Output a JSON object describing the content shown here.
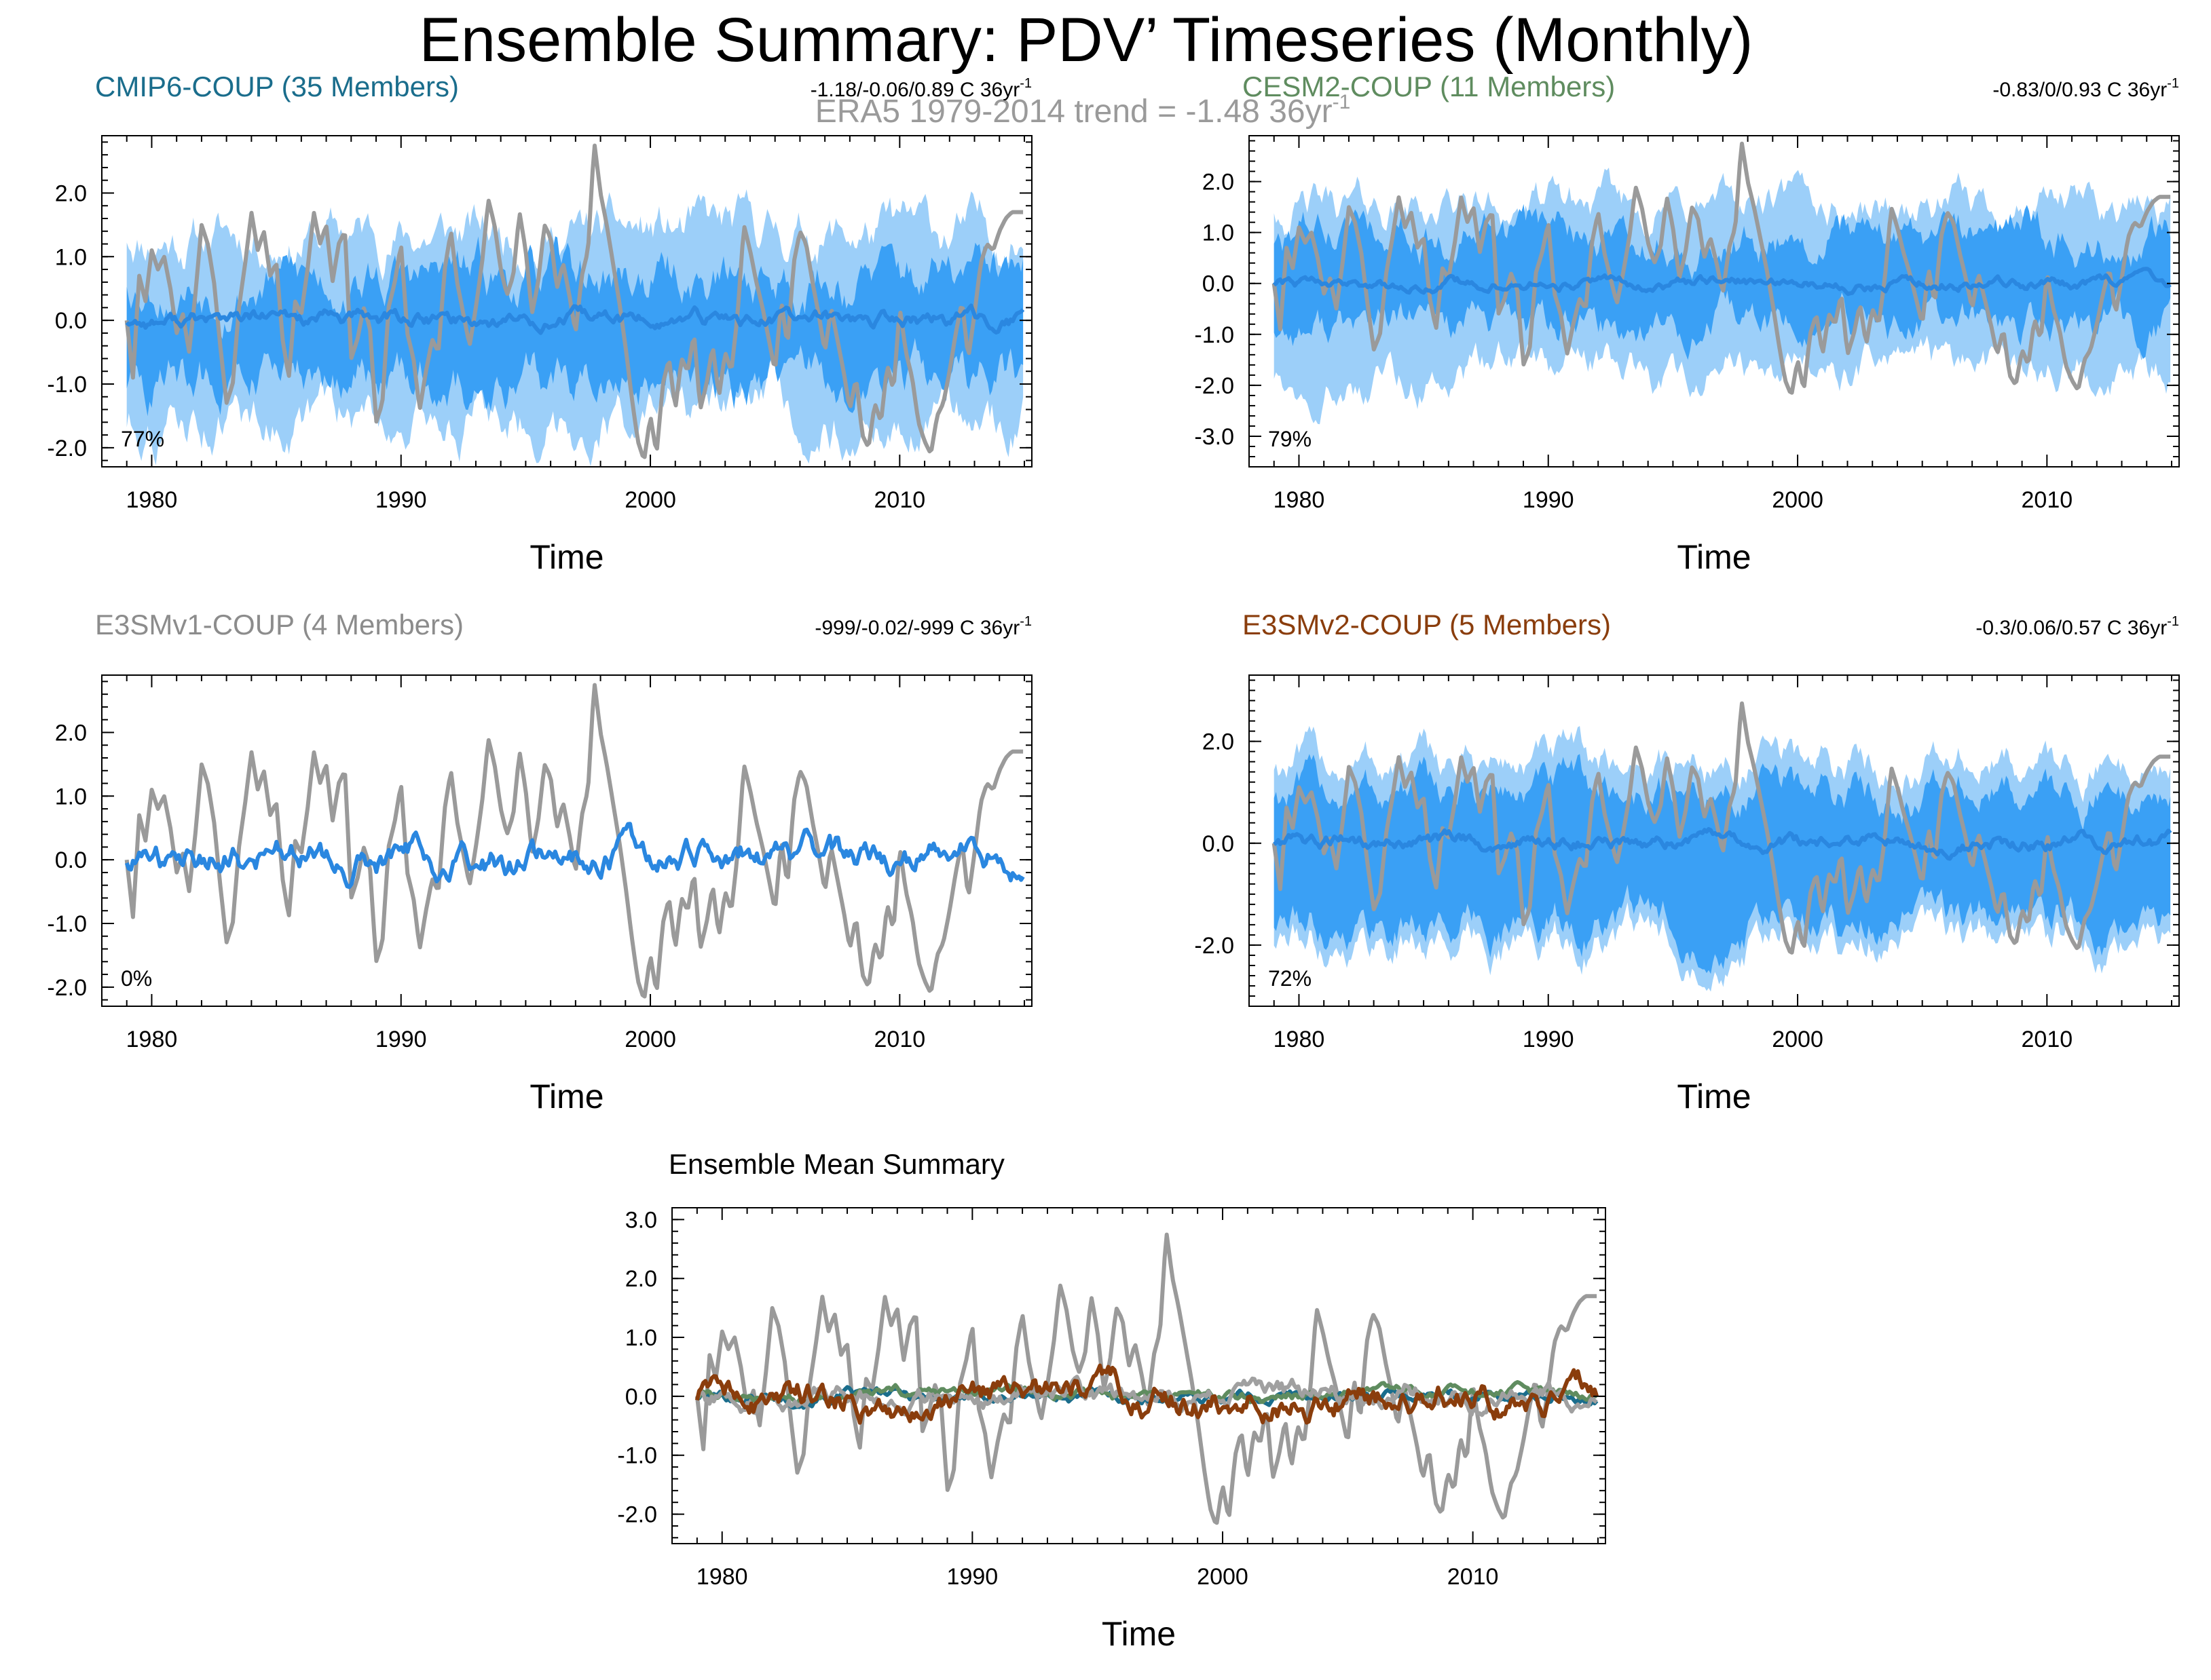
{
  "figure": {
    "title": "Ensemble Summary: PDV’ Timeseries (Monthly)",
    "subtitle": "ERA5 1979-2014 trend = -1.48 36yr",
    "subtitle_exp": "-1"
  },
  "colors": {
    "obs": "#9a9a9a",
    "band_outer": "#9ccff9",
    "band_inner": "#3aa0f5",
    "ens_mean": "#2a87e0",
    "cmip6_title": "#1a6d8c",
    "cesm2_title": "#5f8c5f",
    "e3smv1_title": "#8c8c8c",
    "e3smv2_title": "#8a3d0c",
    "summary_cmip6": "#1a6d8c",
    "summary_cesm2": "#5f8c5f",
    "summary_e3smv1": "#a0a0a0",
    "summary_e3smv2": "#8a3d0c"
  },
  "chart_data": [
    {
      "id": "cmip6",
      "type": "area",
      "title": "CMIP6-COUP (35 Members)",
      "trend_label": "-1.18/-0.06/0.89 C 36yr",
      "trend_exp": "-1",
      "pct_label": "77%",
      "xlabel": "Time",
      "ylabel": "",
      "xlim": [
        1978.0,
        2015.3
      ],
      "ylim": [
        -2.3,
        2.9
      ],
      "yticks": [
        -2.0,
        -1.0,
        0.0,
        1.0,
        2.0
      ],
      "ytick_labels": [
        "-2.0",
        "-1.0",
        "0.0",
        "1.0",
        "2.0"
      ],
      "xticks": [
        1980,
        1990,
        2000,
        2010
      ],
      "xtick_labels": [
        "1980",
        "1990",
        "2000",
        "2010"
      ],
      "band_outer": {
        "lower": -1.55,
        "upper": 1.35
      },
      "band_inner": {
        "lower": -0.95,
        "upper": 0.65
      },
      "ens_mean": {
        "value": 0.0,
        "noise": 0.06
      },
      "shows_obs": true
    },
    {
      "id": "cesm2",
      "type": "area",
      "title": "CESM2-COUP (11 Members)",
      "trend_label": "-0.83/0/0.93 C 36yr",
      "trend_exp": "-1",
      "pct_label": "79%",
      "xlabel": "Time",
      "ylabel": "",
      "xlim": [
        1978.0,
        2015.3
      ],
      "ylim": [
        -3.6,
        2.9
      ],
      "yticks": [
        -3.0,
        -2.0,
        -1.0,
        0.0,
        1.0,
        2.0
      ],
      "ytick_labels": [
        "-3.0",
        "-2.0",
        "-1.0",
        "0.0",
        "1.0",
        "2.0"
      ],
      "xticks": [
        1980,
        1990,
        2000,
        2010
      ],
      "xtick_labels": [
        "1980",
        "1990",
        "2000",
        "2010"
      ],
      "band_outer": {
        "lower": -1.75,
        "upper": 1.5
      },
      "band_inner": {
        "lower": -0.85,
        "upper": 0.9
      },
      "ens_mean": {
        "value": 0.0,
        "noise": 0.05
      },
      "shows_obs": true
    },
    {
      "id": "e3smv1",
      "type": "line",
      "title": "E3SMv1-COUP (4 Members)",
      "trend_label": "-999/-0.02/-999 C 36yr",
      "trend_exp": "-1",
      "pct_label": "0%",
      "xlabel": "Time",
      "ylabel": "",
      "xlim": [
        1978.0,
        2015.3
      ],
      "ylim": [
        -2.3,
        2.9
      ],
      "yticks": [
        -2.0,
        -1.0,
        0.0,
        1.0,
        2.0
      ],
      "ytick_labels": [
        "-2.0",
        "-1.0",
        "0.0",
        "1.0",
        "2.0"
      ],
      "xticks": [
        1980,
        1990,
        2000,
        2010
      ],
      "xtick_labels": [
        "1980",
        "1990",
        "2000",
        "2010"
      ],
      "band_outer": null,
      "band_inner": null,
      "ens_mean": {
        "value": 0.02,
        "noise": 0.12
      },
      "shows_obs": true
    },
    {
      "id": "e3smv2",
      "type": "area",
      "title": "E3SMv2-COUP (5 Members)",
      "trend_label": "-0.3/0.06/0.57 C 36yr",
      "trend_exp": "-1",
      "pct_label": "72%",
      "xlabel": "Time",
      "ylabel": "",
      "xlim": [
        1978.0,
        2015.3
      ],
      "ylim": [
        -3.2,
        3.3
      ],
      "yticks": [
        -2.0,
        0.0,
        2.0
      ],
      "ytick_labels": [
        "-2.0",
        "0.0",
        "2.0"
      ],
      "xticks": [
        1980,
        1990,
        2000,
        2010
      ],
      "xtick_labels": [
        "1980",
        "1990",
        "2000",
        "2010"
      ],
      "band_outer": {
        "lower": -1.9,
        "upper": 1.55
      },
      "band_inner": {
        "lower": -1.55,
        "upper": 1.0
      },
      "ens_mean": {
        "value": 0.02,
        "noise": 0.07
      },
      "shows_obs": true
    },
    {
      "id": "summary",
      "type": "line",
      "title": "Ensemble Mean Summary",
      "xlabel": "Time",
      "ylabel": "",
      "xlim": [
        1978.0,
        2015.3
      ],
      "ylim": [
        -2.5,
        3.2
      ],
      "yticks": [
        -2.0,
        -1.0,
        0.0,
        1.0,
        2.0,
        3.0
      ],
      "ytick_labels": [
        "-2.0",
        "-1.0",
        "0.0",
        "1.0",
        "2.0",
        "3.0"
      ],
      "xticks": [
        1980,
        1990,
        2000,
        2010
      ],
      "xtick_labels": [
        "1980",
        "1990",
        "2000",
        "2010"
      ],
      "shows_obs": true,
      "series_names": [
        "CMIP6-COUP",
        "CESM2-COUP",
        "E3SMv1-COUP",
        "E3SMv2-COUP"
      ],
      "series_noise": [
        0.05,
        0.05,
        0.09,
        0.13
      ]
    }
  ],
  "obs_series": {
    "name": "ERA5",
    "start_year": 1979.0,
    "step": 0.25,
    "values": [
      0.0,
      -0.9,
      0.7,
      0.3,
      1.1,
      0.8,
      1.0,
      0.5,
      -0.2,
      0.1,
      -0.5,
      0.4,
      1.5,
      1.2,
      0.6,
      -0.4,
      -1.3,
      -1.0,
      0.2,
      0.9,
      1.7,
      1.1,
      1.4,
      0.7,
      0.9,
      -0.3,
      -0.9,
      0.3,
      0.1,
      0.8,
      1.7,
      1.2,
      1.5,
      0.6,
      1.2,
      1.4,
      -0.6,
      -0.3,
      0.2,
      -0.1,
      -1.6,
      -1.3,
      0.2,
      0.6,
      1.2,
      -0.2,
      -0.6,
      -1.4,
      -0.8,
      -0.3,
      -0.5,
      0.8,
      1.4,
      0.6,
      0.1,
      -0.4,
      0.2,
      0.9,
      1.9,
      1.5,
      0.8,
      0.4,
      0.7,
      1.7,
      1.1,
      0.1,
      0.6,
      1.5,
      1.3,
      0.5,
      0.9,
      0.4,
      -0.2,
      0.7,
      1.1,
      2.8,
      2.0,
      1.5,
      0.9,
      0.3,
      -0.4,
      -1.2,
      -1.9,
      -2.2,
      -1.5,
      -2.1,
      -1.0,
      -0.6,
      -1.4,
      -0.6,
      -0.8,
      -0.2,
      -1.4,
      -1.0,
      -0.4,
      -1.2,
      -0.5,
      -0.8,
      0.1,
      1.5,
      1.1,
      0.6,
      0.2,
      -0.3,
      -0.8,
      0.3,
      -0.4,
      0.9,
      1.4,
      1.2,
      0.6,
      0.1,
      -0.5,
      0.2,
      -0.3,
      -0.8,
      -1.4,
      -0.9,
      -1.8,
      -2.0,
      -1.3,
      -1.6,
      -0.7,
      -1.1,
      0.2,
      -0.5,
      -0.9,
      -1.6,
      -1.9,
      -2.1,
      -1.5,
      -1.3,
      -0.8,
      -0.2,
      0.3,
      -0.6,
      0.1,
      0.9,
      1.2,
      1.1,
      1.4,
      1.6,
      1.7
    ]
  }
}
